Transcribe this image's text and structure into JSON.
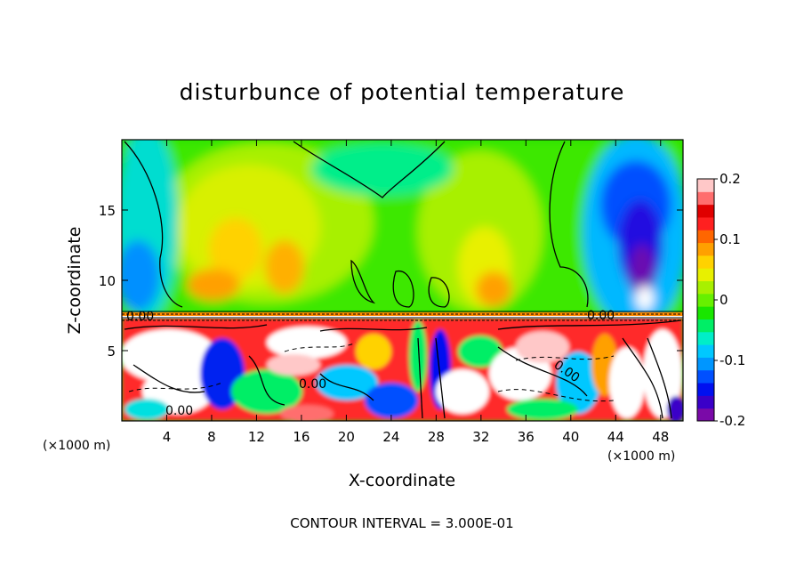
{
  "chart_data": {
    "type": "heatmap",
    "title": "disturbunce of potential temperature",
    "xlabel": "X-coordinate",
    "ylabel": "Z-coordinate",
    "x_unit_left": "(×1000 m)",
    "x_unit_right": "(×1000 m)",
    "footer": "CONTOUR INTERVAL = 3.000E-01",
    "xlim": [
      0,
      50
    ],
    "ylim": [
      0,
      20
    ],
    "x_ticks": [
      "4",
      "8",
      "12",
      "16",
      "20",
      "24",
      "28",
      "32",
      "36",
      "40",
      "44",
      "48"
    ],
    "x_tick_values": [
      4,
      8,
      12,
      16,
      20,
      24,
      28,
      32,
      36,
      40,
      44,
      48
    ],
    "y_ticks": [
      "5",
      "10",
      "15"
    ],
    "y_tick_values": [
      5,
      10,
      15
    ],
    "colorbar": {
      "min": -0.2,
      "max": 0.2,
      "tick_labels": [
        "0.2",
        "0.1",
        "0",
        "-0.1",
        "-0.2"
      ],
      "tick_values": [
        0.2,
        0.1,
        0,
        -0.1,
        -0.2
      ],
      "colors": [
        "#7a0aa8",
        "#3a00c8",
        "#0010f0",
        "#0050ff",
        "#0096ff",
        "#00c8ff",
        "#00eec8",
        "#00ee66",
        "#19e600",
        "#66f000",
        "#a8f000",
        "#e8f000",
        "#ffd200",
        "#ffa000",
        "#ff6600",
        "#ff2020",
        "#e00000",
        "#ff6e6e",
        "#ffc8c8"
      ]
    },
    "contour_labels": [
      "0.00",
      "0.00",
      "0.00",
      "0.00",
      "0.00"
    ]
  }
}
